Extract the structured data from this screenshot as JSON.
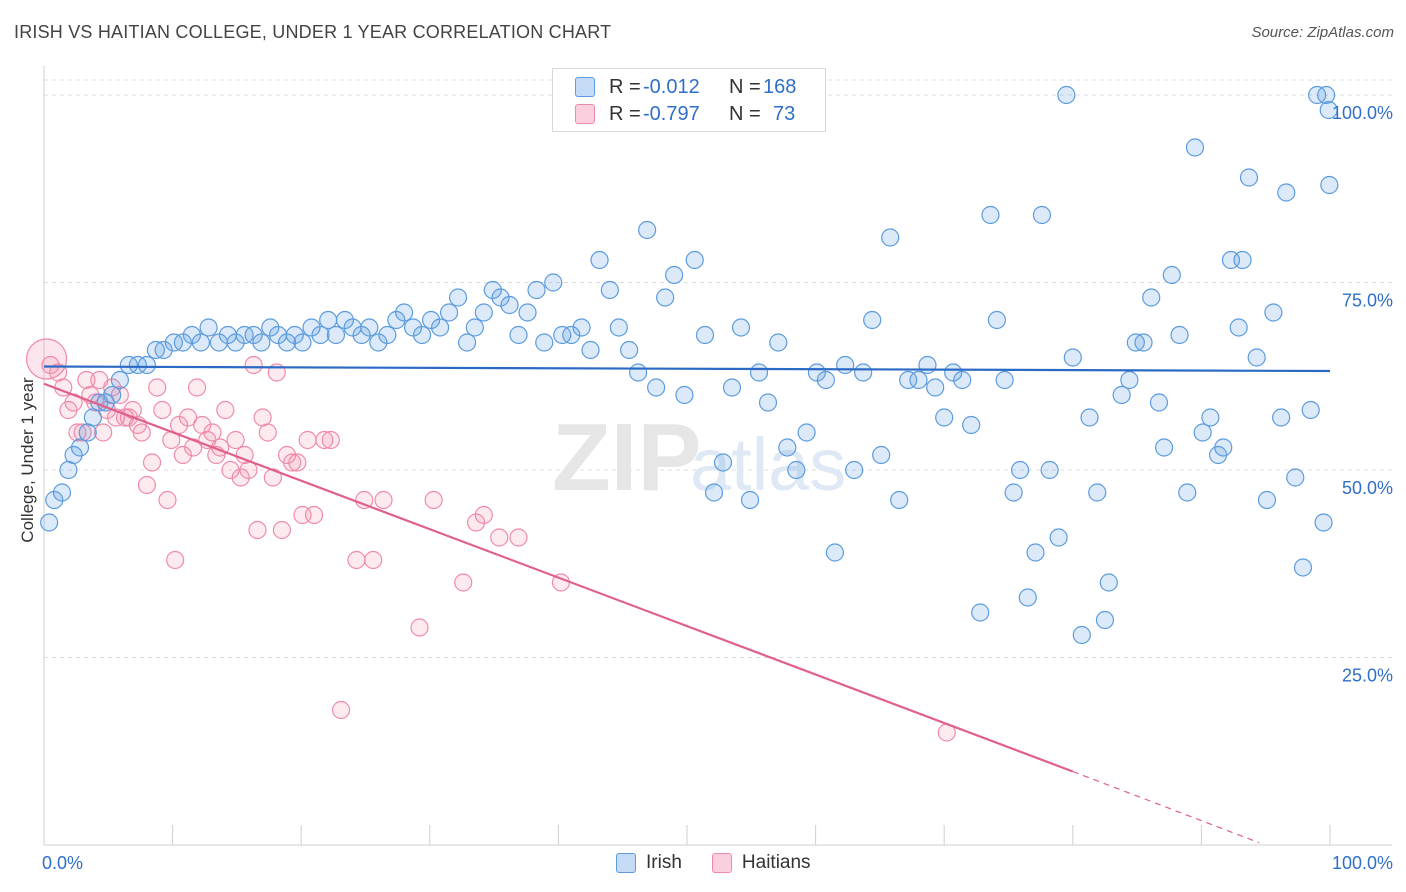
{
  "chart_data": {
    "type": "scatter",
    "title": "IRISH VS HAITIAN COLLEGE, UNDER 1 YEAR CORRELATION CHART",
    "source": "Source: ZipAtlas.com",
    "xlabel": "",
    "ylabel": "College, Under 1 year",
    "xlim": [
      0,
      100
    ],
    "ylim": [
      0,
      102
    ],
    "x_tick_labels": [
      "0.0%",
      "100.0%"
    ],
    "y_ticks": [
      25,
      50,
      75,
      100
    ],
    "y_tick_labels": [
      "25.0%",
      "50.0%",
      "75.0%",
      "100.0%"
    ],
    "grid": true,
    "watermark": "ZIPatlas",
    "legend": {
      "r_label": "R =",
      "n_label": "N =",
      "entries": [
        {
          "name": "Irish",
          "r": "-0.012",
          "n": "168"
        },
        {
          "name": "Haitians",
          "r": "-0.797",
          "n": "73"
        }
      ]
    },
    "colors": {
      "irish": "#5b9bdf",
      "irish_line": "#2a6ac4",
      "haitians": "#f08aa9",
      "haitians_line": "#e0608c",
      "tick_text": "#2f6fc9"
    },
    "series": [
      {
        "name": "Irish",
        "trend": {
          "x0": 0,
          "y0": 63.8,
          "x1": 100,
          "y1": 63.2
        },
        "points": [
          [
            0.4,
            43
          ],
          [
            0.8,
            46
          ],
          [
            1.4,
            47
          ],
          [
            1.9,
            50
          ],
          [
            2.3,
            52
          ],
          [
            2.8,
            53
          ],
          [
            3.4,
            55
          ],
          [
            3.8,
            57
          ],
          [
            4.3,
            59
          ],
          [
            4.8,
            59
          ],
          [
            5.3,
            60
          ],
          [
            5.9,
            62
          ],
          [
            6.6,
            64
          ],
          [
            7.3,
            64
          ],
          [
            8.0,
            64
          ],
          [
            8.7,
            66
          ],
          [
            9.3,
            66
          ],
          [
            10.1,
            67
          ],
          [
            10.8,
            67
          ],
          [
            11.5,
            68
          ],
          [
            12.2,
            67
          ],
          [
            12.8,
            69
          ],
          [
            13.6,
            67
          ],
          [
            14.3,
            68
          ],
          [
            14.9,
            67
          ],
          [
            15.6,
            68
          ],
          [
            16.3,
            68
          ],
          [
            16.9,
            67
          ],
          [
            17.6,
            69
          ],
          [
            18.2,
            68
          ],
          [
            18.9,
            67
          ],
          [
            19.5,
            68
          ],
          [
            20.1,
            67
          ],
          [
            20.8,
            69
          ],
          [
            21.5,
            68
          ],
          [
            22.1,
            70
          ],
          [
            22.7,
            68
          ],
          [
            23.4,
            70
          ],
          [
            24.0,
            69
          ],
          [
            24.7,
            68
          ],
          [
            25.3,
            69
          ],
          [
            26.0,
            67
          ],
          [
            26.7,
            68
          ],
          [
            27.4,
            70
          ],
          [
            28.0,
            71
          ],
          [
            28.7,
            69
          ],
          [
            29.4,
            68
          ],
          [
            30.1,
            70
          ],
          [
            30.8,
            69
          ],
          [
            31.5,
            71
          ],
          [
            32.2,
            73
          ],
          [
            32.9,
            67
          ],
          [
            33.5,
            69
          ],
          [
            34.2,
            71
          ],
          [
            34.9,
            74
          ],
          [
            35.5,
            73
          ],
          [
            36.2,
            72
          ],
          [
            36.9,
            68
          ],
          [
            37.6,
            71
          ],
          [
            38.3,
            74
          ],
          [
            38.9,
            67
          ],
          [
            39.6,
            75
          ],
          [
            40.3,
            68
          ],
          [
            41.0,
            68
          ],
          [
            41.8,
            69
          ],
          [
            42.5,
            66
          ],
          [
            43.2,
            78
          ],
          [
            44.0,
            74
          ],
          [
            44.7,
            69
          ],
          [
            45.5,
            66
          ],
          [
            46.2,
            63
          ],
          [
            46.9,
            82
          ],
          [
            47.6,
            61
          ],
          [
            48.3,
            73
          ],
          [
            49.0,
            76
          ],
          [
            49.8,
            60
          ],
          [
            50.6,
            78
          ],
          [
            51.4,
            68
          ],
          [
            52.1,
            47
          ],
          [
            52.8,
            51
          ],
          [
            53.5,
            61
          ],
          [
            54.2,
            69
          ],
          [
            54.9,
            46
          ],
          [
            55.6,
            63
          ],
          [
            56.3,
            59
          ],
          [
            57.1,
            67
          ],
          [
            57.8,
            53
          ],
          [
            58.5,
            50
          ],
          [
            59.3,
            55
          ],
          [
            60.1,
            63
          ],
          [
            60.8,
            62
          ],
          [
            61.5,
            39
          ],
          [
            62.3,
            64
          ],
          [
            63.0,
            50
          ],
          [
            63.7,
            63
          ],
          [
            64.4,
            70
          ],
          [
            65.1,
            52
          ],
          [
            65.8,
            81
          ],
          [
            66.5,
            46
          ],
          [
            67.2,
            62
          ],
          [
            68.0,
            62
          ],
          [
            68.7,
            64
          ],
          [
            69.3,
            61
          ],
          [
            70.0,
            57
          ],
          [
            70.7,
            63
          ],
          [
            71.4,
            62
          ],
          [
            72.1,
            56
          ],
          [
            72.8,
            31
          ],
          [
            73.6,
            84
          ],
          [
            74.1,
            70
          ],
          [
            74.7,
            62
          ],
          [
            75.4,
            47
          ],
          [
            75.9,
            50
          ],
          [
            76.5,
            33
          ],
          [
            77.1,
            39
          ],
          [
            77.6,
            84
          ],
          [
            78.2,
            50
          ],
          [
            78.9,
            41
          ],
          [
            79.5,
            100
          ],
          [
            80.0,
            65
          ],
          [
            80.7,
            28
          ],
          [
            81.3,
            57
          ],
          [
            81.9,
            47
          ],
          [
            82.5,
            30
          ],
          [
            82.8,
            35
          ],
          [
            83.8,
            60
          ],
          [
            84.4,
            62
          ],
          [
            84.9,
            67
          ],
          [
            85.5,
            67
          ],
          [
            86.1,
            73
          ],
          [
            86.7,
            59
          ],
          [
            87.1,
            53
          ],
          [
            87.7,
            76
          ],
          [
            88.3,
            68
          ],
          [
            88.9,
            47
          ],
          [
            89.5,
            93
          ],
          [
            90.1,
            55
          ],
          [
            90.7,
            57
          ],
          [
            91.3,
            52
          ],
          [
            91.7,
            53
          ],
          [
            92.3,
            78
          ],
          [
            92.9,
            69
          ],
          [
            93.2,
            78
          ],
          [
            93.7,
            89
          ],
          [
            94.3,
            65
          ],
          [
            95.1,
            46
          ],
          [
            95.6,
            71
          ],
          [
            96.2,
            57
          ],
          [
            96.6,
            87
          ],
          [
            97.3,
            49
          ],
          [
            97.9,
            37
          ],
          [
            98.5,
            58
          ],
          [
            99.0,
            100
          ],
          [
            99.5,
            43
          ],
          [
            99.7,
            100
          ],
          [
            99.9,
            98
          ],
          [
            99.95,
            88
          ]
        ]
      },
      {
        "name": "Haitians",
        "trend": {
          "x0": 0,
          "y0": 61.5,
          "x1": 80,
          "y1": 9.8
        },
        "trend_dash": {
          "x0": 80,
          "y0": 9.8,
          "x1": 94.5,
          "y1": 0.3
        },
        "points": [
          [
            0.5,
            64
          ],
          [
            1.1,
            63
          ],
          [
            1.5,
            61
          ],
          [
            1.9,
            58
          ],
          [
            2.3,
            59
          ],
          [
            2.6,
            55
          ],
          [
            3.0,
            55
          ],
          [
            3.3,
            62
          ],
          [
            3.6,
            60
          ],
          [
            4.0,
            59
          ],
          [
            4.3,
            62
          ],
          [
            4.6,
            55
          ],
          [
            4.9,
            58
          ],
          [
            5.3,
            61
          ],
          [
            5.6,
            57
          ],
          [
            5.9,
            60
          ],
          [
            6.3,
            57
          ],
          [
            6.6,
            57
          ],
          [
            6.9,
            58
          ],
          [
            7.3,
            56
          ],
          [
            7.6,
            55
          ],
          [
            8.0,
            48
          ],
          [
            8.4,
            51
          ],
          [
            8.8,
            61
          ],
          [
            9.2,
            58
          ],
          [
            9.6,
            46
          ],
          [
            9.9,
            54
          ],
          [
            10.2,
            38
          ],
          [
            10.5,
            56
          ],
          [
            10.8,
            52
          ],
          [
            11.2,
            57
          ],
          [
            11.6,
            53
          ],
          [
            11.9,
            61
          ],
          [
            12.3,
            56
          ],
          [
            12.7,
            54
          ],
          [
            13.1,
            55
          ],
          [
            13.4,
            52
          ],
          [
            13.7,
            53
          ],
          [
            14.1,
            58
          ],
          [
            14.5,
            50
          ],
          [
            14.9,
            54
          ],
          [
            15.3,
            49
          ],
          [
            15.6,
            52
          ],
          [
            15.9,
            50
          ],
          [
            16.3,
            64
          ],
          [
            16.6,
            42
          ],
          [
            17.0,
            57
          ],
          [
            17.4,
            55
          ],
          [
            17.8,
            49
          ],
          [
            18.1,
            63
          ],
          [
            18.5,
            42
          ],
          [
            18.9,
            52
          ],
          [
            19.3,
            51
          ],
          [
            19.7,
            51
          ],
          [
            20.1,
            44
          ],
          [
            20.5,
            54
          ],
          [
            21.0,
            44
          ],
          [
            21.8,
            54
          ],
          [
            22.3,
            54
          ],
          [
            23.1,
            18
          ],
          [
            24.3,
            38
          ],
          [
            24.9,
            46
          ],
          [
            25.6,
            38
          ],
          [
            26.4,
            46
          ],
          [
            29.2,
            29
          ],
          [
            30.3,
            46
          ],
          [
            32.6,
            35
          ],
          [
            33.6,
            43
          ],
          [
            34.2,
            44
          ],
          [
            35.4,
            41
          ],
          [
            36.9,
            41
          ],
          [
            40.2,
            35
          ],
          [
            70.2,
            15
          ]
        ]
      }
    ]
  }
}
